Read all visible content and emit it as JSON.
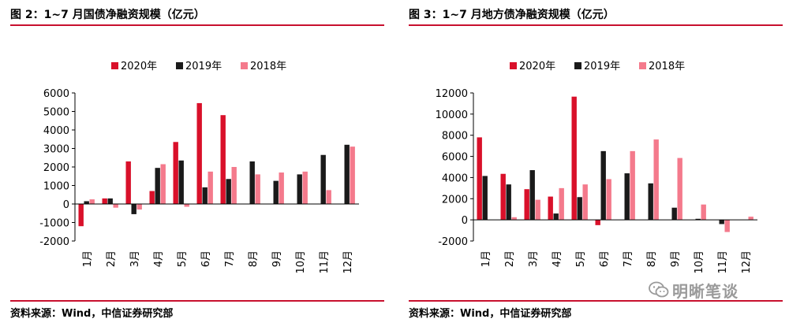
{
  "left": {
    "title": "图 2：1~7 月国债净融资规模（亿元）",
    "source": "资料来源：Wind，中信证券研究部"
  },
  "right": {
    "title": "图 3：1~7 月地方债净融资规模（亿元）",
    "source": "资料来源：Wind，中信证券研究部"
  },
  "watermark": {
    "text": "明晰笔谈",
    "icon": "wechat-icon"
  },
  "colors": {
    "s2020": "#d9102a",
    "s2019": "#1a1a1a",
    "s2018": "#f47a8c",
    "rule": "#c8102e"
  },
  "chart_data": [
    {
      "type": "bar",
      "title": "图 2：1~7 月国债净融资规模（亿元）",
      "categories": [
        "1月",
        "2月",
        "3月",
        "4月",
        "5月",
        "6月",
        "7月",
        "8月",
        "9月",
        "10月",
        "11月",
        "12月"
      ],
      "series": [
        {
          "name": "2020年",
          "values": [
            -1200,
            300,
            2300,
            700,
            3350,
            5450,
            4800,
            null,
            null,
            null,
            null,
            null
          ]
        },
        {
          "name": "2019年",
          "values": [
            150,
            300,
            -550,
            1950,
            2350,
            900,
            1350,
            2300,
            1250,
            1600,
            2650,
            3200
          ]
        },
        {
          "name": "2018年",
          "values": [
            250,
            -200,
            -300,
            2150,
            -150,
            1750,
            2000,
            1600,
            1700,
            1750,
            750,
            3100
          ]
        }
      ],
      "ylim": [
        -2000,
        6000
      ],
      "yticks": [
        -2000,
        -1000,
        0,
        1000,
        2000,
        3000,
        4000,
        5000,
        6000
      ],
      "ytick_labels": [
        "-2000",
        "-1000",
        "0",
        "1000",
        "2000",
        "3000",
        "4000",
        "5000",
        "6000"
      ],
      "legend": "top"
    },
    {
      "type": "bar",
      "title": "图 3：1~7 月地方债净融资规模（亿元）",
      "categories": [
        "1月",
        "2月",
        "3月",
        "4月",
        "5月",
        "6月",
        "7月",
        "8月",
        "9月",
        "10月",
        "11月",
        "12月"
      ],
      "series": [
        {
          "name": "2020年",
          "values": [
            7800,
            4350,
            2900,
            2200,
            11650,
            -500,
            null,
            null,
            null,
            null,
            null,
            null
          ]
        },
        {
          "name": "2019年",
          "values": [
            4150,
            3350,
            4700,
            600,
            2150,
            6500,
            4400,
            3450,
            1150,
            100,
            -400,
            0
          ]
        },
        {
          "name": "2018年",
          "values": [
            0,
            250,
            1900,
            3000,
            3350,
            3850,
            6500,
            7600,
            5850,
            1450,
            -1150,
            300
          ]
        }
      ],
      "ylim": [
        -2000,
        12000
      ],
      "yticks": [
        -2000,
        0,
        2000,
        4000,
        6000,
        8000,
        10000,
        12000
      ],
      "ytick_labels": [
        "-2000",
        "0",
        "2000",
        "4000",
        "6000",
        "8000",
        "10000",
        "12000"
      ],
      "legend": "top"
    }
  ]
}
